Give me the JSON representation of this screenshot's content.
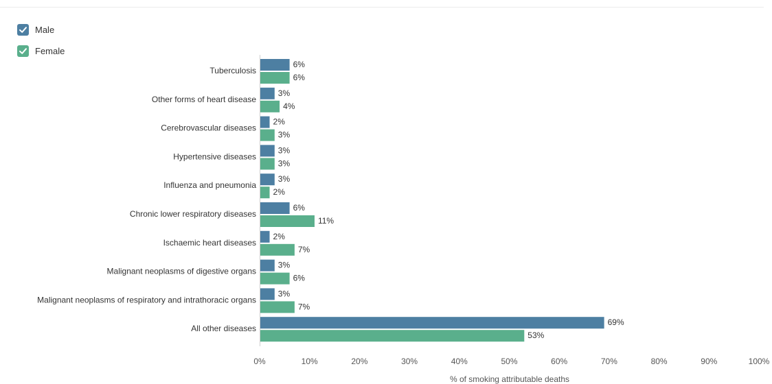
{
  "legend": {
    "items": [
      {
        "label": "Male",
        "color": "#4d7fa2",
        "checked": true
      },
      {
        "label": "Female",
        "color": "#5aaf8c",
        "checked": true
      }
    ]
  },
  "chart_data": {
    "type": "bar",
    "orientation": "horizontal",
    "categories": [
      "Tuberculosis",
      "Other forms of heart disease",
      "Cerebrovascular diseases",
      "Hypertensive diseases",
      "Influenza and pneumonia",
      "Chronic lower respiratory diseases",
      "Ischaemic heart diseases",
      "Malignant neoplasms of digestive organs",
      "Malignant neoplasms of respiratory and intrathoracic organs",
      "All other diseases"
    ],
    "series": [
      {
        "name": "Male",
        "color": "#4d7fa2",
        "values": [
          6,
          3,
          2,
          3,
          3,
          6,
          2,
          3,
          3,
          69
        ]
      },
      {
        "name": "Female",
        "color": "#5aaf8c",
        "values": [
          6,
          4,
          3,
          3,
          2,
          11,
          7,
          6,
          7,
          53
        ]
      }
    ],
    "xlabel": "% of smoking attributable deaths",
    "xlim": [
      0,
      100
    ],
    "xticks": [
      "0%",
      "10%",
      "20%",
      "30%",
      "40%",
      "50%",
      "60%",
      "70%",
      "80%",
      "90%",
      "100%"
    ],
    "value_suffix": "%",
    "legend_position": "top-left"
  }
}
